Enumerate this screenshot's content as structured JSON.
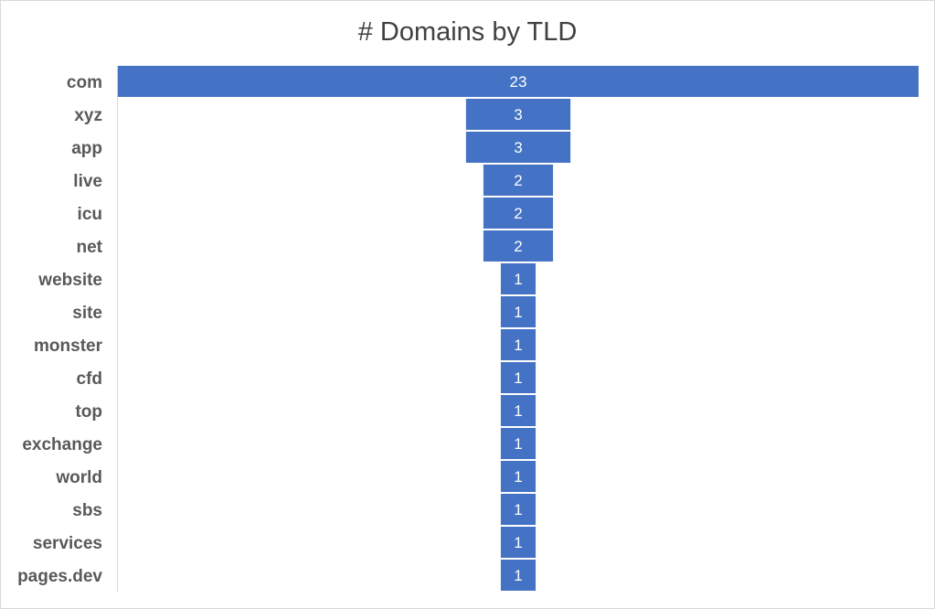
{
  "chart_data": {
    "type": "bar",
    "orientation": "horizontal-funnel",
    "title": "# Domains by TLD",
    "xlabel": "",
    "ylabel": "",
    "categories": [
      "com",
      "xyz",
      "app",
      "live",
      "icu",
      "net",
      "website",
      "site",
      "monster",
      "cfd",
      "top",
      "exchange",
      "world",
      "sbs",
      "services",
      "pages.dev"
    ],
    "values": [
      23,
      3,
      3,
      2,
      2,
      2,
      1,
      1,
      1,
      1,
      1,
      1,
      1,
      1,
      1,
      1
    ],
    "data_labels": true,
    "grid": false,
    "legend": "none",
    "bar_color": "#4472C4"
  }
}
